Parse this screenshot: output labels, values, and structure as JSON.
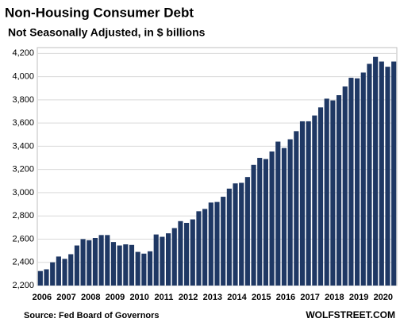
{
  "chart_data": {
    "type": "bar",
    "title": "Non-Housing  Consumer Debt",
    "subtitle": "Not Seasonally Adjusted, in $ billions",
    "source": "Source: Fed Board of Governors",
    "credit": "WOLFSTREET.COM",
    "color": "#1f3864",
    "grid": true,
    "categories": [
      "2006",
      null,
      null,
      null,
      "2007",
      null,
      null,
      null,
      "2008",
      null,
      null,
      null,
      "2009",
      null,
      null,
      null,
      "2010",
      null,
      null,
      null,
      "2011",
      null,
      null,
      null,
      "2012",
      null,
      null,
      null,
      "2013",
      null,
      null,
      null,
      "2014",
      null,
      null,
      null,
      "2015",
      null,
      null,
      null,
      "2016",
      null,
      null,
      null,
      "2017",
      null,
      null,
      null,
      "2018",
      null,
      null,
      null,
      "2019",
      null,
      null,
      null,
      "2020",
      null,
      null
    ],
    "values": [
      2325,
      2340,
      2400,
      2450,
      2430,
      2470,
      2545,
      2600,
      2590,
      2610,
      2635,
      2635,
      2575,
      2545,
      2555,
      2550,
      2490,
      2475,
      2495,
      2640,
      2620,
      2650,
      2695,
      2755,
      2740,
      2770,
      2840,
      2860,
      2915,
      2920,
      2965,
      3035,
      3080,
      3085,
      3135,
      3240,
      3300,
      3290,
      3355,
      3440,
      3385,
      3460,
      3530,
      3615,
      3615,
      3665,
      3735,
      3810,
      3795,
      3840,
      3915,
      3990,
      3985,
      4035,
      4110,
      4170,
      4130,
      4085,
      4130
    ],
    "ylim": [
      2200,
      4250
    ],
    "yticks": [
      {
        "value": 2200,
        "label": "2,200"
      },
      {
        "value": 2400,
        "label": "2,400"
      },
      {
        "value": 2600,
        "label": "2,600"
      },
      {
        "value": 2800,
        "label": "2,800"
      },
      {
        "value": 3000,
        "label": "3,000"
      },
      {
        "value": 3200,
        "label": "3,200"
      },
      {
        "value": 3400,
        "label": "3,400"
      },
      {
        "value": 3600,
        "label": "3,600"
      },
      {
        "value": 3800,
        "label": "3,800"
      },
      {
        "value": 4000,
        "label": "4,000"
      },
      {
        "value": 4200,
        "label": "4,200"
      }
    ]
  }
}
